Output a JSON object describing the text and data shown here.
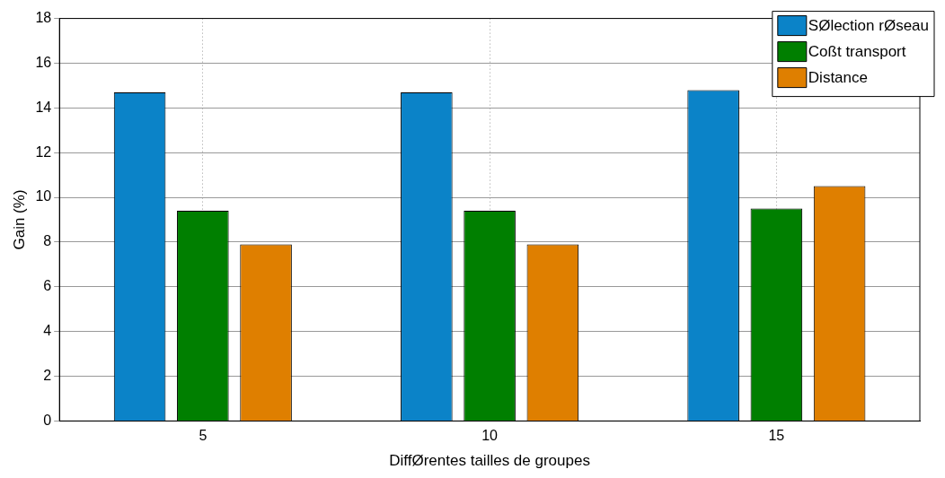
{
  "chart_data": {
    "type": "bar",
    "xlabel": "DiffØrentes tailles de groupes",
    "ylabel": "Gain (%)",
    "categories": [
      "5",
      "10",
      "15"
    ],
    "series": [
      {
        "name": "SØlection rØseau",
        "color": "#0b83c8",
        "values": [
          14.7,
          14.7,
          14.8
        ]
      },
      {
        "name": "Coßt transport",
        "color": "#007f00",
        "values": [
          9.4,
          9.4,
          9.5
        ]
      },
      {
        "name": "Distance",
        "color": "#df7f00",
        "values": [
          7.9,
          7.9,
          10.5
        ]
      }
    ],
    "ylim": [
      0,
      18
    ],
    "yticks": [
      0,
      2,
      4,
      6,
      8,
      10,
      12,
      14,
      16,
      18
    ],
    "grid": true,
    "legend": "top right"
  }
}
